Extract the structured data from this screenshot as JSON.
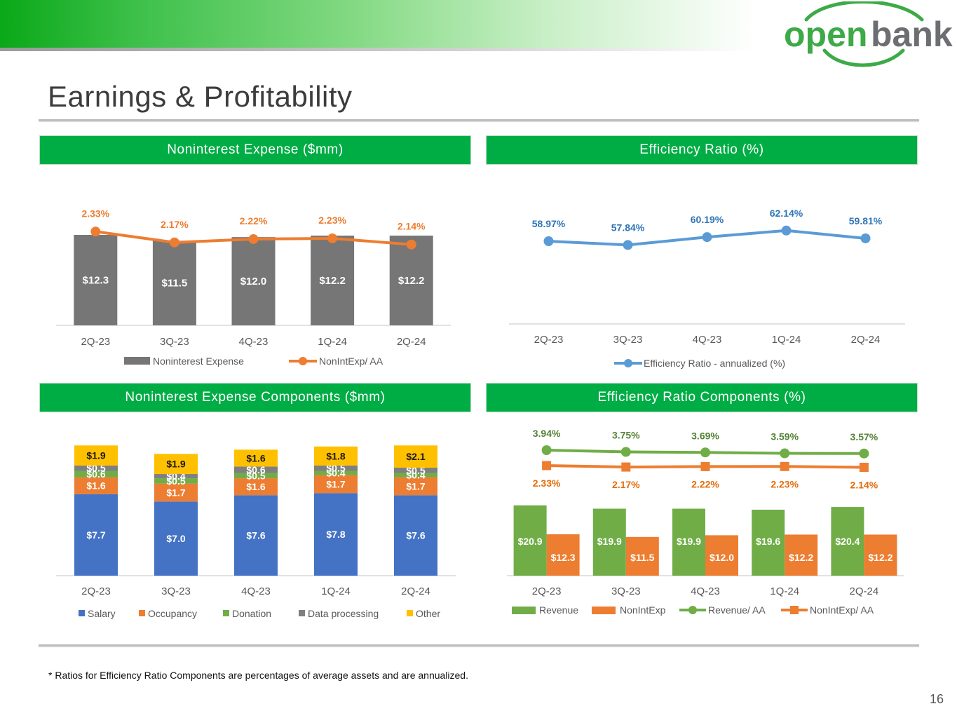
{
  "header": {
    "logo": {
      "text_left": "open",
      "text_right": "bank"
    },
    "title": "Earnings & Profitability"
  },
  "panels": {
    "p1": {
      "title": "Noninterest Expense ($mm)"
    },
    "p2": {
      "title": "Efficiency Ratio (%)"
    },
    "p3": {
      "title": "Noninterest Expense Components ($mm)"
    },
    "p4": {
      "title": "Efficiency Ratio Components (%)"
    }
  },
  "footnote": "* Ratios for Efficiency Ratio Components are percentages of average assets and are annualized.",
  "page_number": "16",
  "colors": {
    "brand_green": "#00ad45",
    "gray": "#767676",
    "orange": "#ed7d31",
    "blue": "#5b9bd5",
    "blue_dark": "#2e75b6",
    "green": "#70ad47",
    "stack_blue": "#4472c4",
    "yellow": "#ffc000",
    "stack_gray": "#7f7f7f"
  },
  "chart_data": [
    {
      "type": "bar",
      "categories": [
        "2Q-23",
        "3Q-23",
        "4Q-23",
        "1Q-24",
        "2Q-24"
      ],
      "series": [
        {
          "name": "Noninterest Expense",
          "kind": "bar",
          "values": [
            12.3,
            11.5,
            12.0,
            12.2,
            12.2
          ],
          "labels": [
            "$12.3",
            "$11.5",
            "$12.0",
            "$12.2",
            "$12.2"
          ],
          "color": "#767676"
        },
        {
          "name": "NonIntExp/ AA",
          "kind": "line",
          "values": [
            2.33,
            2.17,
            2.22,
            2.23,
            2.14
          ],
          "labels": [
            "2.33%",
            "2.17%",
            "2.22%",
            "2.23%",
            "2.14%"
          ],
          "color": "#ed7d31"
        }
      ],
      "legend": "bottom"
    },
    {
      "type": "line",
      "categories": [
        "2Q-23",
        "3Q-23",
        "4Q-23",
        "1Q-24",
        "2Q-24"
      ],
      "series": [
        {
          "name": "Efficiency Ratio - annualized (%)",
          "values": [
            58.97,
            57.84,
            60.19,
            62.14,
            59.81
          ],
          "labels": [
            "58.97%",
            "57.84%",
            "60.19%",
            "62.14%",
            "59.81%"
          ],
          "color": "#5b9bd5"
        }
      ],
      "legend": "bottom"
    },
    {
      "type": "bar",
      "stacked": true,
      "categories": [
        "2Q-23",
        "3Q-23",
        "4Q-23",
        "1Q-24",
        "2Q-24"
      ],
      "series": [
        {
          "name": "Salary",
          "values": [
            7.7,
            7.0,
            7.6,
            7.8,
            7.6
          ],
          "labels": [
            "$7.7",
            "$7.0",
            "$7.6",
            "$7.8",
            "$7.6"
          ],
          "color": "#4472c4"
        },
        {
          "name": "Occupancy",
          "values": [
            1.6,
            1.7,
            1.6,
            1.7,
            1.7
          ],
          "labels": [
            "$1.6",
            "$1.7",
            "$1.6",
            "$1.7",
            "$1.7"
          ],
          "color": "#ed7d31"
        },
        {
          "name": "Donation",
          "values": [
            0.6,
            0.5,
            0.5,
            0.4,
            0.4
          ],
          "labels": [
            "$0.6",
            "$0.5",
            "$0.5",
            "$0.4",
            "$0.4"
          ],
          "color": "#70ad47"
        },
        {
          "name": "Data processing",
          "values": [
            0.5,
            0.4,
            0.6,
            0.5,
            0.5
          ],
          "labels": [
            "$0.5",
            "$0.4",
            "$0.6",
            "$0.5",
            "$0.5"
          ],
          "color": "#7f7f7f"
        },
        {
          "name": "Other",
          "values": [
            1.9,
            1.9,
            1.6,
            1.8,
            2.1
          ],
          "labels": [
            "$1.9",
            "$1.9",
            "$1.6",
            "$1.8",
            "$2.1"
          ],
          "color": "#ffc000"
        }
      ],
      "legend": "bottom"
    },
    {
      "type": "bar",
      "categories": [
        "2Q-23",
        "3Q-23",
        "4Q-23",
        "1Q-24",
        "2Q-24"
      ],
      "series": [
        {
          "name": "Revenue",
          "kind": "bar",
          "values": [
            20.9,
            19.9,
            19.9,
            19.6,
            20.4
          ],
          "labels": [
            "$20.9",
            "$19.9",
            "$19.9",
            "$19.6",
            "$20.4"
          ],
          "color": "#70ad47"
        },
        {
          "name": "NonIntExp",
          "kind": "bar",
          "values": [
            12.3,
            11.5,
            12.0,
            12.2,
            12.2
          ],
          "labels": [
            "$12.3",
            "$11.5",
            "$12.0",
            "$12.2",
            "$12.2"
          ],
          "color": "#ed7d31"
        },
        {
          "name": "Revenue/ AA",
          "kind": "line",
          "values": [
            3.94,
            3.75,
            3.69,
            3.59,
            3.57
          ],
          "labels": [
            "3.94%",
            "3.75%",
            "3.69%",
            "3.59%",
            "3.57%"
          ],
          "color": "#70ad47"
        },
        {
          "name": "NonIntExp/ AA",
          "kind": "line",
          "values": [
            2.33,
            2.17,
            2.22,
            2.23,
            2.14
          ],
          "labels": [
            "2.33%",
            "2.17%",
            "2.22%",
            "2.23%",
            "2.14%"
          ],
          "color": "#ed7d31"
        }
      ],
      "legend": "bottom"
    }
  ]
}
